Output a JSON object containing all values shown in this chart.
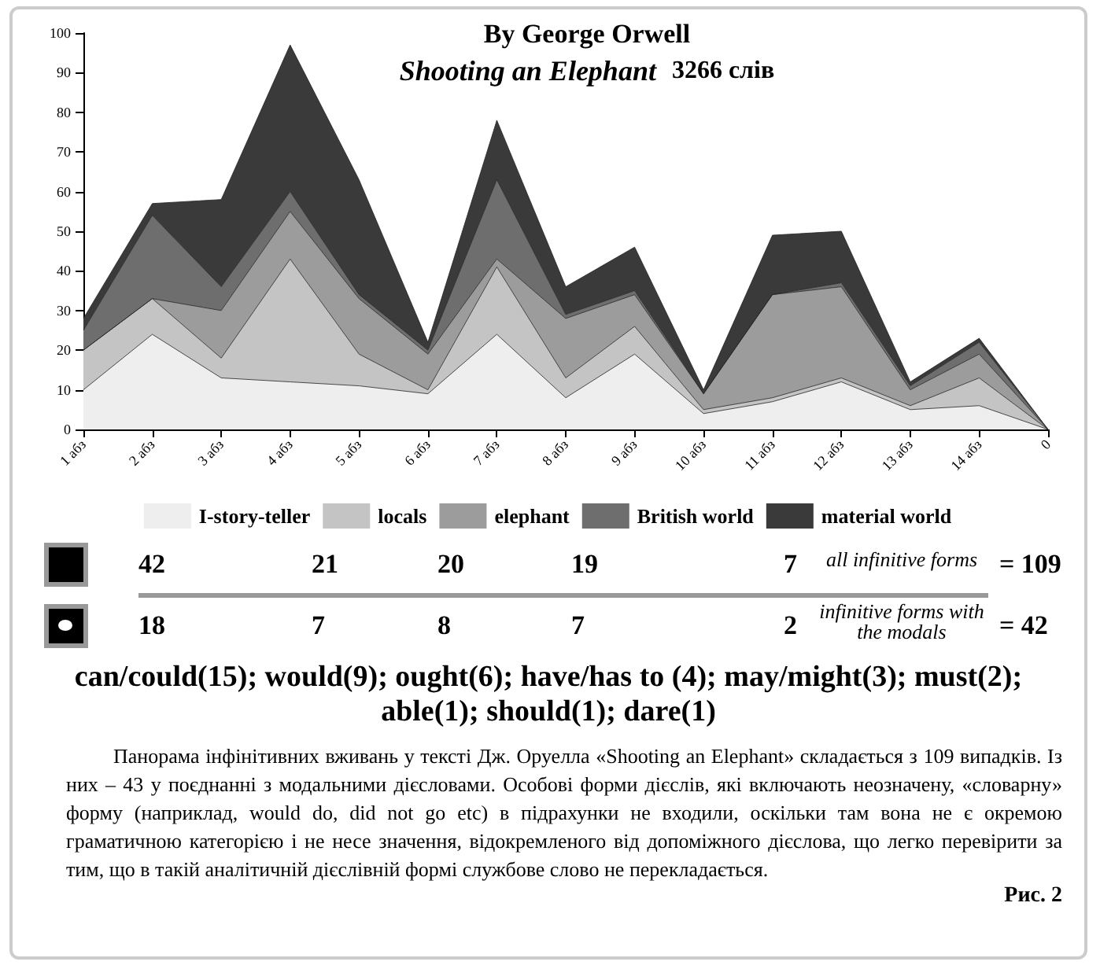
{
  "chart_data": {
    "type": "area",
    "title": "By George Orwell",
    "subtitle": "Shooting an Elephant",
    "categories": [
      "1 абз",
      "2 абз",
      "3 абз",
      "4 абз",
      "5 абз",
      "6 абз",
      "7 абз",
      "8 абз",
      "9 абз",
      "10 абз",
      "11 абз",
      "12 абз",
      "13 абз",
      "14 абз",
      "0"
    ],
    "stacked": true,
    "series": [
      {
        "name": "I-story-teller",
        "color": "#eeeeee",
        "values": [
          10,
          24,
          13,
          12,
          11,
          9,
          24,
          8,
          19,
          4,
          7,
          12,
          5,
          6,
          0
        ]
      },
      {
        "name": "locals",
        "color": "#c4c4c4",
        "values": [
          10,
          9,
          5,
          31,
          8,
          1,
          17,
          5,
          7,
          1,
          1,
          1,
          1,
          7,
          0
        ]
      },
      {
        "name": "elephant",
        "color": "#9c9c9c",
        "values": [
          0,
          0,
          12,
          12,
          14,
          9,
          2,
          15,
          8,
          4,
          26,
          23,
          4,
          6,
          0
        ]
      },
      {
        "name": "British world",
        "color": "#6e6e6e",
        "values": [
          5,
          21,
          6,
          5,
          1,
          1,
          20,
          1,
          1,
          0,
          0,
          1,
          1,
          3,
          0
        ]
      },
      {
        "name": "material world",
        "color": "#3a3a3a",
        "values": [
          3,
          3,
          22,
          37,
          29,
          2,
          15,
          7,
          11,
          1,
          15,
          13,
          1,
          1,
          0
        ]
      }
    ],
    "ylim": [
      0,
      100
    ],
    "yticks": [
      0,
      10,
      20,
      30,
      40,
      50,
      60,
      70,
      80,
      90,
      100
    ],
    "grid": false,
    "legend": "bottom",
    "annotations": [
      "3266 слів",
      "42",
      "21",
      "20",
      "19",
      "7",
      "all infinitive forms",
      "= 109",
      "18",
      "7",
      "8",
      "7",
      "2",
      "infinitive forms with the modals",
      "= 42",
      "can/could(15); would(9); ought(6); have/has to (4); may/might(3); must(2); able(1); should(1); dare(1)",
      "Панорама інфінітивних вживань у тексті Дж. Оруелла «Shooting an Elephant» складається з 109 випадків. Із них – 43 у поєднанні з модальними дієсловами. Особові форми дієслів, які включають неозначену, «словарну» форму (наприклад, would do, did not go etc) в підрахунки не входили, оскільки там вона не є окремою граматичною категорією і не несе значення, відокремленого від допоміжного дієслова, що легко перевірити за тим, що в такій аналітичній дієслівній формі службове слово не перекладається.",
      "Рис. 2"
    ]
  }
}
